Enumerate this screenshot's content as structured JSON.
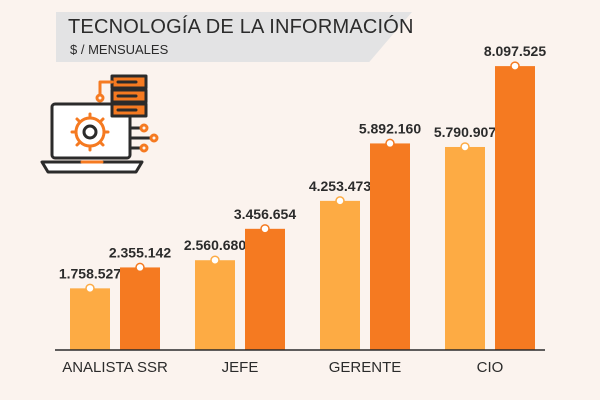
{
  "header": {
    "title": "TECNOLOGÍA DE LA INFORMACIÓN",
    "subtitle": "$ / MENSUALES"
  },
  "icon": "computer-server-gear-icon",
  "colors": {
    "background": "#fbf3ee",
    "series_light": "#fdab44",
    "series_dark": "#f57a21",
    "text": "#2b2b2b"
  },
  "chart_data": {
    "type": "bar",
    "title": "TECNOLOGÍA DE LA INFORMACIÓN",
    "subtitle": "$ / MENSUALES",
    "categories": [
      "ANALISTA SSR",
      "JEFE",
      "GERENTE",
      "CIO"
    ],
    "series": [
      {
        "values": [
          1758527,
          2560680,
          4253473,
          5790907
        ],
        "labels": [
          "1.758.527",
          "2.560.680",
          "4.253.473",
          "5.790.907"
        ],
        "color": "#fdab44"
      },
      {
        "values": [
          2355142,
          3456654,
          5892160,
          8097525
        ],
        "labels": [
          "2.355.142",
          "3.456.654",
          "5.892.160",
          "8.097.525"
        ],
        "color": "#f57a21"
      }
    ],
    "ylim": [
      0,
      8500000
    ],
    "grid": false,
    "legend": "none"
  }
}
